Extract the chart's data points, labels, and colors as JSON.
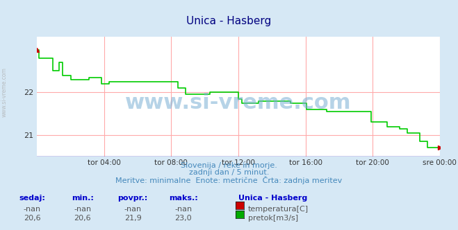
{
  "title": "Unica - Hasberg",
  "title_color": "#000080",
  "bg_color": "#d6e8f5",
  "plot_bg_color": "#ffffff",
  "grid_color": "#ffaaaa",
  "xlabel_color": "#555555",
  "watermark": "www.si-vreme.com",
  "subtitle_lines": [
    "Slovenija / reke in morje.",
    "zadnji dan / 5 minut.",
    "Meritve: minimalne  Enote: metrične  Črta: zadnja meritev"
  ],
  "xtick_labels": [
    "tor 04:00",
    "tor 08:00",
    "tor 12:00",
    "tor 16:00",
    "tor 20:00",
    "sre 00:00"
  ],
  "xtick_positions": [
    0.167,
    0.333,
    0.5,
    0.667,
    0.833,
    1.0
  ],
  "ytick_labels": [
    "21",
    "22"
  ],
  "ylim": [
    20.5,
    23.3
  ],
  "xlim": [
    0.0,
    1.0
  ],
  "ylabel_text": "",
  "left_label": "www.si-vreme.com",
  "table_headers": [
    "sedaj:",
    "min.:",
    "povpr.:",
    "maks.:",
    "Unica - Hasberg"
  ],
  "table_row1": [
    "-nan",
    "-nan",
    "-nan",
    "-nan",
    "temperatura[C]"
  ],
  "table_row2": [
    "20,6",
    "20,6",
    "21,9",
    "23,0",
    "pretok[m3/s]"
  ],
  "temp_color": "#cc0000",
  "flow_color": "#00aa00",
  "line_color": "#00cc00",
  "line_width": 1.2,
  "flow_data_x": [
    0.0,
    0.005,
    0.005,
    0.04,
    0.04,
    0.055,
    0.055,
    0.065,
    0.065,
    0.085,
    0.085,
    0.13,
    0.13,
    0.16,
    0.16,
    0.18,
    0.18,
    0.35,
    0.35,
    0.37,
    0.37,
    0.43,
    0.43,
    0.5,
    0.5,
    0.51,
    0.51,
    0.55,
    0.55,
    0.63,
    0.63,
    0.67,
    0.67,
    0.72,
    0.72,
    0.83,
    0.83,
    0.87,
    0.87,
    0.9,
    0.9,
    0.92,
    0.92,
    0.95,
    0.95,
    0.97,
    0.97,
    1.0
  ],
  "flow_data_y": [
    23.0,
    23.0,
    22.8,
    22.8,
    22.5,
    22.5,
    22.7,
    22.7,
    22.4,
    22.4,
    22.3,
    22.3,
    22.35,
    22.35,
    22.2,
    22.2,
    22.25,
    22.25,
    22.1,
    22.1,
    21.95,
    21.95,
    22.0,
    22.0,
    21.85,
    21.85,
    21.75,
    21.75,
    21.8,
    21.8,
    21.75,
    21.75,
    21.6,
    21.6,
    21.55,
    21.55,
    21.3,
    21.3,
    21.2,
    21.2,
    21.15,
    21.15,
    21.05,
    21.05,
    20.85,
    20.85,
    20.7,
    20.7
  ]
}
